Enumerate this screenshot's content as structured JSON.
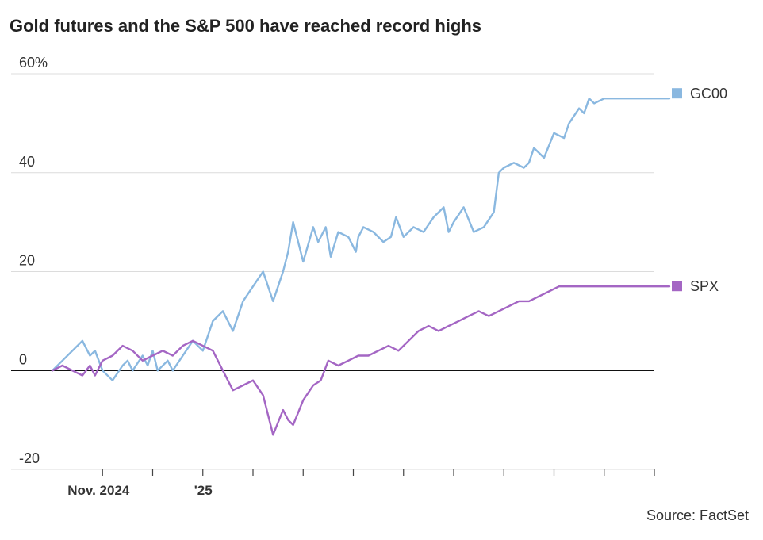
{
  "title": "Gold futures and the S&P 500 have reached record highs",
  "source": "Source: FactSet",
  "chart_data": {
    "type": "line",
    "title": "Gold futures and the S&P 500 have reached record highs",
    "xlabel": "",
    "ylabel": "",
    "unit": "%",
    "ylim": [
      -20,
      60
    ],
    "yticks": [
      {
        "value": 60,
        "label": "60%"
      },
      {
        "value": 40,
        "label": "40"
      },
      {
        "value": 20,
        "label": "20"
      },
      {
        "value": 0,
        "label": "0"
      },
      {
        "value": -20,
        "label": "-20"
      }
    ],
    "xlim": [
      0,
      12
    ],
    "xtick_positions": [
      1,
      2,
      3,
      4,
      5,
      6,
      7,
      8,
      9,
      10,
      11,
      12
    ],
    "xtick_labels": [
      {
        "x": 1,
        "label": "Nov. 2024"
      },
      {
        "x": 3,
        "label": "'25"
      }
    ],
    "grid": true,
    "zero_line": true,
    "series": [
      {
        "name": "GC00",
        "color": "#8ab8e0",
        "x": [
          0,
          0.2,
          0.4,
          0.6,
          0.75,
          0.85,
          1.0,
          1.2,
          1.4,
          1.5,
          1.6,
          1.8,
          1.9,
          2.0,
          2.1,
          2.3,
          2.4,
          2.6,
          2.8,
          3.0,
          3.2,
          3.4,
          3.6,
          3.8,
          4.0,
          4.2,
          4.4,
          4.6,
          4.7,
          4.8,
          5.0,
          5.2,
          5.3,
          5.45,
          5.55,
          5.7,
          5.9,
          6.05,
          6.1,
          6.2,
          6.4,
          6.6,
          6.75,
          6.85,
          7.0,
          7.2,
          7.4,
          7.6,
          7.8,
          7.9,
          8.0,
          8.2,
          8.4,
          8.6,
          8.8,
          8.9,
          9.0,
          9.2,
          9.4,
          9.5,
          9.6,
          9.8,
          10.0,
          10.2,
          10.3,
          10.5,
          10.6,
          10.7,
          10.8,
          11.0,
          11.2,
          11.4,
          11.6,
          11.8,
          11.9,
          12.0,
          12.2,
          12.3
        ],
        "values": [
          0,
          2,
          4,
          6,
          3,
          4,
          0,
          -2,
          1,
          2,
          0,
          3,
          1,
          4,
          0,
          2,
          0,
          3,
          6,
          4,
          10,
          12,
          8,
          14,
          17,
          20,
          14,
          20,
          24,
          30,
          22,
          29,
          26,
          29,
          23,
          28,
          27,
          24,
          27,
          29,
          28,
          26,
          27,
          31,
          27,
          29,
          28,
          31,
          33,
          28,
          30,
          33,
          28,
          29,
          32,
          40,
          41,
          42,
          41,
          42,
          45,
          43,
          48,
          47,
          50,
          53,
          52,
          55,
          54,
          55,
          55,
          55,
          55,
          55,
          55,
          55,
          55,
          55
        ]
      },
      {
        "name": "SPX",
        "color": "#a466c4",
        "x": [
          0,
          0.2,
          0.4,
          0.6,
          0.75,
          0.85,
          1.0,
          1.2,
          1.4,
          1.6,
          1.8,
          2.0,
          2.2,
          2.4,
          2.6,
          2.8,
          3.0,
          3.2,
          3.4,
          3.6,
          3.8,
          4.0,
          4.2,
          4.4,
          4.6,
          4.7,
          4.8,
          5.0,
          5.2,
          5.35,
          5.5,
          5.7,
          5.9,
          6.1,
          6.3,
          6.5,
          6.7,
          6.9,
          7.1,
          7.3,
          7.5,
          7.7,
          7.9,
          8.1,
          8.3,
          8.5,
          8.7,
          8.9,
          9.1,
          9.3,
          9.5,
          9.7,
          9.9,
          10.1,
          10.3,
          10.5,
          10.7,
          10.9,
          11.1,
          11.3,
          11.5,
          11.7,
          11.9,
          12.1,
          12.3
        ],
        "values": [
          0,
          1,
          0,
          -1,
          1,
          -1,
          2,
          3,
          5,
          4,
          2,
          3,
          4,
          3,
          5,
          6,
          5,
          4,
          0,
          -4,
          -3,
          -2,
          -5,
          -13,
          -8,
          -10,
          -11,
          -6,
          -3,
          -2,
          2,
          1,
          2,
          3,
          3,
          4,
          5,
          4,
          6,
          8,
          9,
          8,
          9,
          10,
          11,
          12,
          11,
          12,
          13,
          14,
          14,
          15,
          16,
          17,
          17,
          17,
          17,
          17,
          17,
          17,
          17,
          17,
          17,
          17,
          17
        ]
      }
    ],
    "legend": [
      "GC00",
      "SPX"
    ],
    "legend_placement": "right"
  }
}
